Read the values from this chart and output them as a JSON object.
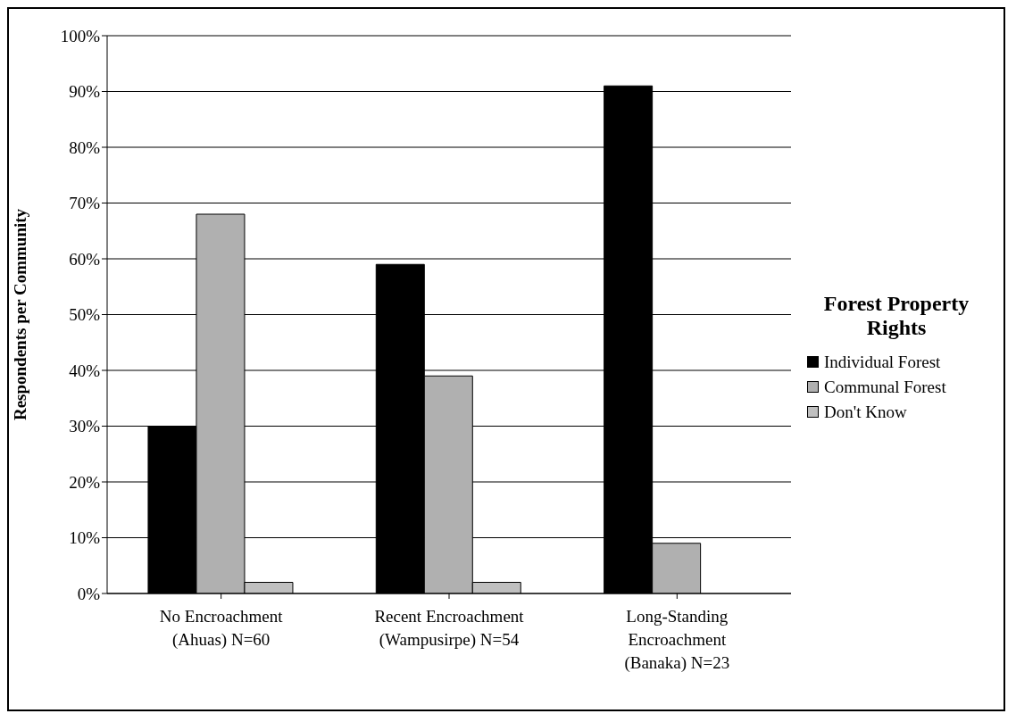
{
  "chart_data": {
    "type": "bar",
    "ylabel": "Respondents per Community",
    "legend_title": "Forest Property Rights",
    "categories": [
      "No Encroachment (Ahuas) N=60",
      "Recent Encroachment (Wampusirpe) N=54",
      "Long-Standing Encroachment (Banaka) N=23"
    ],
    "series": [
      {
        "name": "Individual Forest",
        "color": "#000000",
        "values": [
          30,
          59,
          91
        ]
      },
      {
        "name": "Communal Forest",
        "color": "#b0b0b0",
        "values": [
          68,
          39,
          9
        ]
      },
      {
        "name": "Don't Know",
        "color": "#c0c0c0",
        "values": [
          2,
          2,
          0
        ]
      }
    ],
    "ylim": [
      0,
      100
    ],
    "yticks": [
      {
        "value": 0,
        "label": "0%"
      },
      {
        "value": 10,
        "label": "10%"
      },
      {
        "value": 20,
        "label": "20%"
      },
      {
        "value": 30,
        "label": "30%"
      },
      {
        "value": 40,
        "label": "40%"
      },
      {
        "value": 50,
        "label": "50%"
      },
      {
        "value": 60,
        "label": "60%"
      },
      {
        "value": 70,
        "label": "70%"
      },
      {
        "value": 80,
        "label": "80%"
      },
      {
        "value": 90,
        "label": "90%"
      },
      {
        "value": 100,
        "label": "100%"
      }
    ],
    "grid": "y",
    "legend": "right"
  }
}
